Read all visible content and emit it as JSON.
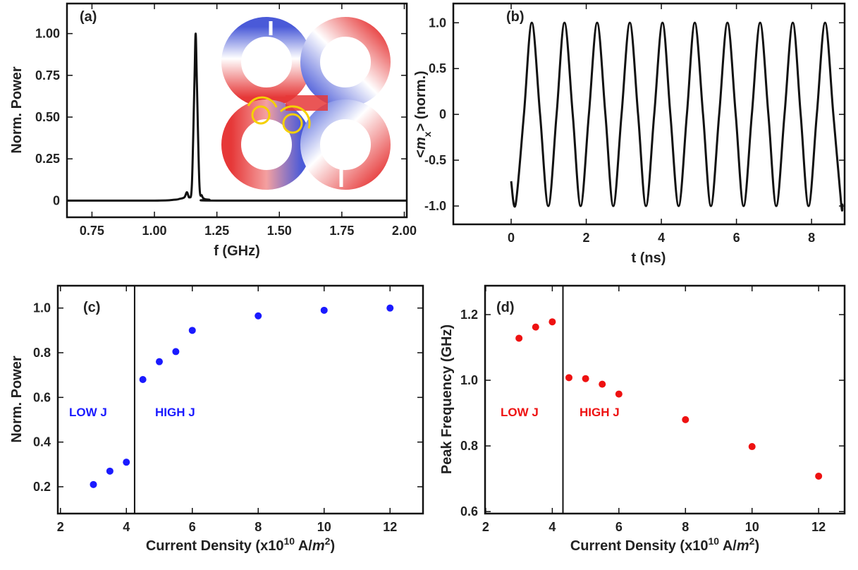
{
  "chart_data": [
    {
      "type": "line",
      "panel_label": "(a)",
      "xlabel": [
        "f (GHz)"
      ],
      "ylabel": [
        "Norm. Power"
      ],
      "color": "#111111",
      "x": [
        0.65,
        1.0,
        1.08,
        1.1,
        1.12,
        1.13,
        1.14,
        1.15,
        1.16,
        1.165,
        1.17,
        1.18,
        1.19,
        1.2,
        1.22,
        1.25,
        2.01
      ],
      "values": [
        0,
        0,
        0.005,
        0.01,
        0.02,
        0.05,
        0.02,
        0.1,
        0.7,
        1.0,
        0.7,
        0.1,
        0.03,
        0.01,
        0.005,
        0,
        0
      ],
      "xlim": [
        0.65,
        2.01
      ],
      "ylim": [
        -0.1,
        1.18
      ],
      "xticks": [
        0.75,
        {
          "value": 1,
          "label": "1.00"
        },
        1.25,
        {
          "value": 1.5,
          "label": "1.50"
        },
        1.75,
        {
          "value": 2,
          "label": "2.00"
        }
      ],
      "yticks": [
        0,
        0.25,
        {
          "value": 0.5,
          "label": "0.50"
        },
        0.75,
        {
          "value": 1,
          "label": "1.00"
        }
      ]
    },
    {
      "type": "line",
      "panel_label": "(b)",
      "xlabel": [
        "t (ns)"
      ],
      "ylabel": [
        "<",
        "m",
        "x",
        "> (norm.)"
      ],
      "color": "#111111",
      "x": [
        0,
        0.12,
        0.34,
        0.55,
        0.77,
        0.99,
        1.21,
        1.42,
        1.64,
        1.85,
        2.07,
        2.29,
        2.51,
        2.72,
        2.94,
        3.16,
        3.38,
        3.59,
        3.81,
        4.03,
        4.24,
        4.46,
        4.68,
        4.89,
        5.11,
        5.32,
        5.54,
        5.76,
        5.98,
        6.19,
        6.41,
        6.63,
        6.85,
        7.06,
        7.28,
        7.5,
        7.71,
        7.92,
        8.14,
        8.36,
        8.58,
        8.79,
        8.82
      ],
      "values": [
        -0.73,
        -0.98,
        0,
        1,
        0,
        -1,
        0,
        1,
        0,
        -1,
        0,
        1,
        0,
        -1,
        0,
        1,
        0,
        -1,
        0,
        1,
        0,
        -1,
        0,
        1,
        0,
        -1,
        0,
        1,
        0,
        -1,
        0,
        1,
        0,
        -1,
        0,
        1,
        0,
        -1,
        0,
        1,
        0,
        -0.98,
        -0.97
      ],
      "xlim": [
        -1.54,
        8.88
      ],
      "ylim": [
        -1.2,
        1.21
      ],
      "xticks": [
        0,
        2,
        4,
        6,
        8
      ],
      "yticks": [
        {
          "value": -1,
          "label": "-1.0"
        },
        -0.5,
        0,
        0.5,
        {
          "value": 1,
          "label": "1.0"
        }
      ]
    },
    {
      "type": "scatter",
      "panel_label": "(c)",
      "xlabel": [
        "Current Density (x10",
        "10",
        " A/",
        "m",
        "2",
        ")"
      ],
      "ylabel": [
        "Norm. Power"
      ],
      "color": "#1a1aff",
      "annotations": [
        "LOW J",
        "HIGH J"
      ],
      "divider_x": 4.25,
      "x": [
        3,
        3.5,
        4,
        4.5,
        5,
        5.5,
        6,
        8,
        10,
        12
      ],
      "values": [
        0.21,
        0.27,
        0.31,
        0.68,
        0.76,
        0.805,
        0.9,
        0.965,
        0.99,
        1.0
      ],
      "xlim": [
        1.92,
        13
      ],
      "ylim": [
        0.08,
        1.1
      ],
      "xticks": [
        2,
        4,
        6,
        8,
        10,
        12
      ],
      "yticks": [
        0.2,
        0.4,
        0.6,
        0.8,
        {
          "value": 1,
          "label": "1.0"
        }
      ]
    },
    {
      "type": "scatter",
      "panel_label": "(d)",
      "xlabel": [
        "Current Density (x10",
        "10",
        " A/",
        "m",
        "2",
        ")"
      ],
      "ylabel": [
        "Peak Frequency (GHz)"
      ],
      "color": "#ee1111",
      "annotations": [
        "LOW J",
        "HIGH J"
      ],
      "divider_x": 4.32,
      "x": [
        3,
        3.5,
        4,
        4.5,
        5,
        5.5,
        6,
        8,
        10,
        12
      ],
      "values": [
        1.128,
        1.162,
        1.178,
        1.008,
        1.005,
        0.988,
        0.958,
        0.88,
        0.798,
        0.708
      ],
      "xlim": [
        1.98,
        12.78
      ],
      "ylim": [
        0.594,
        1.288
      ],
      "xticks": [
        2,
        4,
        6,
        8,
        10,
        12
      ],
      "yticks": [
        0.6,
        0.8,
        {
          "value": 1,
          "label": "1.0"
        },
        1.2
      ]
    }
  ]
}
